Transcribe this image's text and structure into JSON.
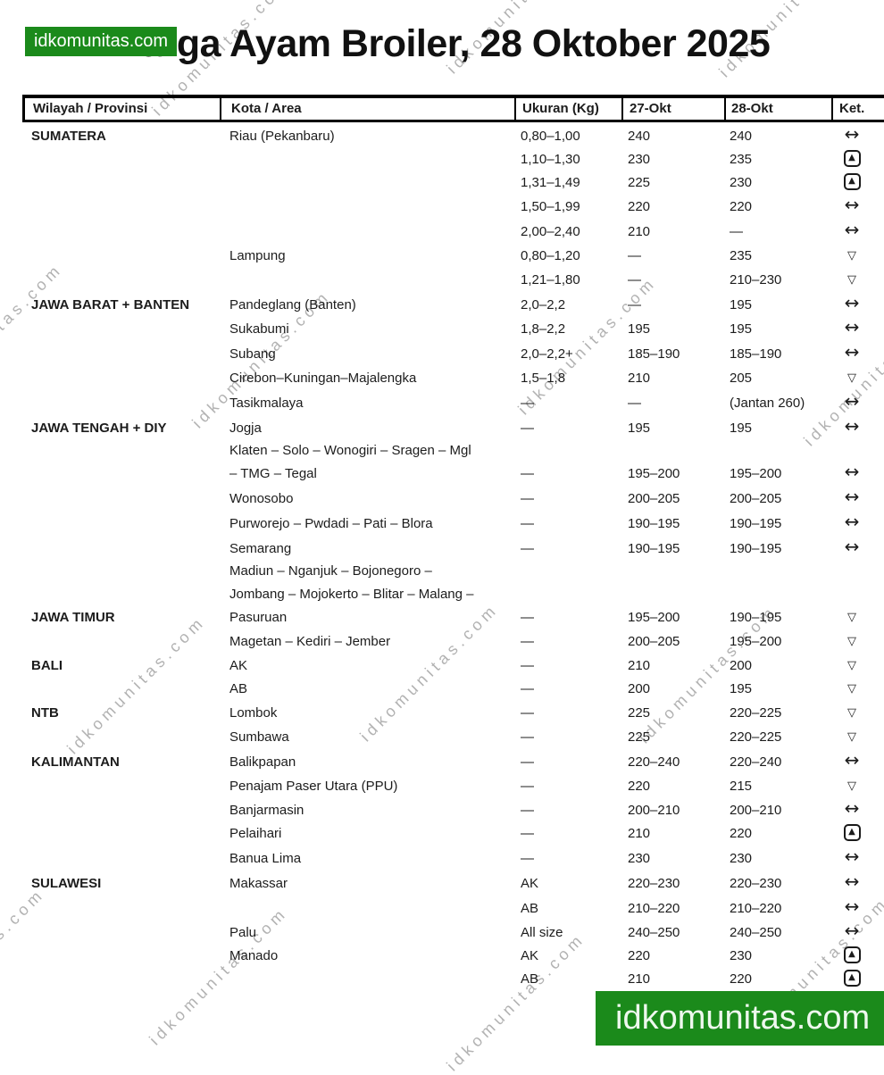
{
  "page": {
    "title": "Harga Ayam Broiler, 28 Oktober 2025",
    "badge": "idkomunitas.com",
    "footer": "idkomunitas.com",
    "watermark": "idkomunitas.com"
  },
  "table": {
    "headers": [
      "Wilayah / Provinsi",
      "Kota / Area",
      "Ukuran (Kg)",
      "27-Okt",
      "28-Okt",
      "Ket."
    ],
    "symbols": {
      "same": "↔",
      "up": "▲",
      "down": "▽"
    },
    "rows": [
      {
        "region": "SUMATERA",
        "city": "Riau (Pekanbaru)",
        "size": "0,80–1,00",
        "p27": "240",
        "p28": "240",
        "trend": "same"
      },
      {
        "region": "",
        "city": "",
        "size": "1,10–1,30",
        "p27": "230",
        "p28": "235",
        "trend": "up"
      },
      {
        "region": "",
        "city": "",
        "size": "1,31–1,49",
        "p27": "225",
        "p28": "230",
        "trend": "up"
      },
      {
        "region": "",
        "city": "",
        "size": "1,50–1,99",
        "p27": "220",
        "p28": "220",
        "trend": "same"
      },
      {
        "region": "",
        "city": "",
        "size": "2,00–2,40",
        "p27": "210",
        "p28": "—",
        "trend": "same"
      },
      {
        "region": "",
        "city": "Lampung",
        "size": "0,80–1,20",
        "p27": "—",
        "p28": "235",
        "trend": "down"
      },
      {
        "region": "",
        "city": "",
        "size": "1,21–1,80",
        "p27": "—",
        "p28": "210–230",
        "trend": "down"
      },
      {
        "region": "JAWA BARAT + BANTEN",
        "city": "Pandeglang (Banten)",
        "size": "2,0–2,2",
        "p27": "—",
        "p28": "195",
        "trend": "same"
      },
      {
        "region": "",
        "city": "Sukabumi",
        "size": "1,8–2,2",
        "p27": "195",
        "p28": "195",
        "trend": "same"
      },
      {
        "region": "",
        "city": "Subang",
        "size": "2,0–2,2+",
        "p27": "185–190",
        "p28": "185–190",
        "trend": "same"
      },
      {
        "region": "",
        "city": "Cirebon–Kuningan–Majalengka",
        "size": "1,5–1,8",
        "p27": "210",
        "p28": "205",
        "trend": "down"
      },
      {
        "region": "",
        "city": "Tasikmalaya",
        "size": "—",
        "p27": "—",
        "p28": "(Jantan 260)",
        "trend": "same"
      },
      {
        "region": "JAWA TENGAH + DIY",
        "city": "Jogja",
        "size": "—",
        "p27": "195",
        "p28": "195",
        "trend": "same"
      },
      {
        "region": "",
        "city": "Klaten – Solo – Wonogiri – Sragen – Mgl\n– TMG – Tegal",
        "size": "—",
        "p27": "195–200",
        "p28": "195–200",
        "trend": "same"
      },
      {
        "region": "",
        "city": "Wonosobo",
        "size": "—",
        "p27": "200–205",
        "p28": "200–205",
        "trend": "same"
      },
      {
        "region": "",
        "city": "Purworejo – Pwdadi – Pati – Blora",
        "size": "—",
        "p27": "190–195",
        "p28": "190–195",
        "trend": "same"
      },
      {
        "region": "",
        "city": "Semarang",
        "size": "—",
        "p27": "190–195",
        "p28": "190–195",
        "trend": "same"
      },
      {
        "region": "JAWA TIMUR",
        "city": "Madiun – Nganjuk – Bojonegoro –\nJombang – Mojokerto – Blitar – Malang –\nPasuruan",
        "size": "—",
        "p27": "195–200",
        "p28": "190–195",
        "trend": "down"
      },
      {
        "region": "",
        "city": "Magetan – Kediri – Jember",
        "size": "—",
        "p27": "200–205",
        "p28": "195–200",
        "trend": "down"
      },
      {
        "region": "BALI",
        "city": "AK",
        "size": "—",
        "p27": "210",
        "p28": "200",
        "trend": "down"
      },
      {
        "region": "",
        "city": "AB",
        "size": "—",
        "p27": "200",
        "p28": "195",
        "trend": "down"
      },
      {
        "region": "NTB",
        "city": "Lombok",
        "size": "—",
        "p27": "225",
        "p28": "220–225",
        "trend": "down"
      },
      {
        "region": "",
        "city": "Sumbawa",
        "size": "—",
        "p27": "225",
        "p28": "220–225",
        "trend": "down"
      },
      {
        "region": "KALIMANTAN",
        "city": "Balikpapan",
        "size": "—",
        "p27": "220–240",
        "p28": "220–240",
        "trend": "same"
      },
      {
        "region": "",
        "city": "Penajam Paser Utara (PPU)",
        "size": "—",
        "p27": "220",
        "p28": "215",
        "trend": "down"
      },
      {
        "region": "",
        "city": "Banjarmasin",
        "size": "—",
        "p27": "200–210",
        "p28": "200–210",
        "trend": "same"
      },
      {
        "region": "",
        "city": "Pelaihari",
        "size": "—",
        "p27": "210",
        "p28": "220",
        "trend": "up"
      },
      {
        "region": "",
        "city": "Banua Lima",
        "size": "—",
        "p27": "230",
        "p28": "230",
        "trend": "same"
      },
      {
        "region": "SULAWESI",
        "city": "Makassar",
        "size": "AK",
        "p27": "220–230",
        "p28": "220–230",
        "trend": "same"
      },
      {
        "region": "",
        "city": "",
        "size": "AB",
        "p27": "210–220",
        "p28": "210–220",
        "trend": "same"
      },
      {
        "region": "",
        "city": "Palu",
        "size": "All size",
        "p27": "240–250",
        "p28": "240–250",
        "trend": "same"
      },
      {
        "region": "",
        "city": "Manado",
        "size": "AK",
        "p27": "220",
        "p28": "230",
        "trend": "up"
      },
      {
        "region": "",
        "city": "",
        "size": "AB",
        "p27": "210",
        "p28": "220",
        "trend": "up"
      }
    ]
  }
}
